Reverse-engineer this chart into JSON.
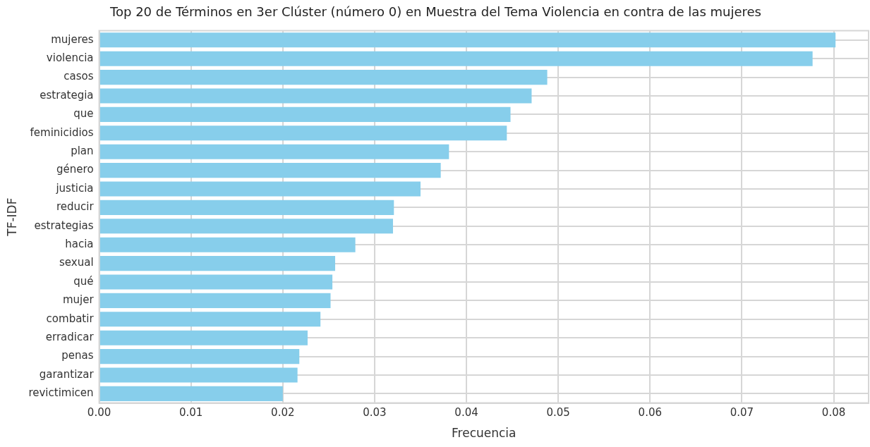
{
  "chart_data": {
    "type": "bar",
    "orientation": "horizontal",
    "title": "Top 20 de Términos en 3er Clúster (número 0) en Muestra del Tema Violencia en contra de las mujeres",
    "xlabel": "Frecuencia",
    "ylabel": "TF-IDF",
    "categories": [
      "mujeres",
      "violencia",
      "casos",
      "estrategia",
      "que",
      "feminicidios",
      "plan",
      "género",
      "justicia",
      "reducir",
      "estrategias",
      "hacia",
      "sexual",
      "qué",
      "mujer",
      "combatir",
      "erradicar",
      "penas",
      "garantizar",
      "revictimicen"
    ],
    "values": [
      0.0802,
      0.0777,
      0.0488,
      0.0471,
      0.0448,
      0.0444,
      0.0381,
      0.0372,
      0.035,
      0.0321,
      0.032,
      0.0279,
      0.0257,
      0.0254,
      0.0252,
      0.0241,
      0.0227,
      0.0218,
      0.0216,
      0.02
    ],
    "color": "#87ceeb",
    "xlim": [
      0,
      0.0838
    ],
    "xticks": [
      {
        "value": 0,
        "label": "0.00"
      },
      {
        "value": 0.01,
        "label": "0.01"
      },
      {
        "value": 0.02,
        "label": "0.02"
      },
      {
        "value": 0.03,
        "label": "0.03"
      },
      {
        "value": 0.04,
        "label": "0.04"
      },
      {
        "value": 0.05,
        "label": "0.05"
      },
      {
        "value": 0.06,
        "label": "0.06"
      },
      {
        "value": 0.07,
        "label": "0.07"
      },
      {
        "value": 0.08,
        "label": "0.08"
      }
    ],
    "grid": true
  }
}
